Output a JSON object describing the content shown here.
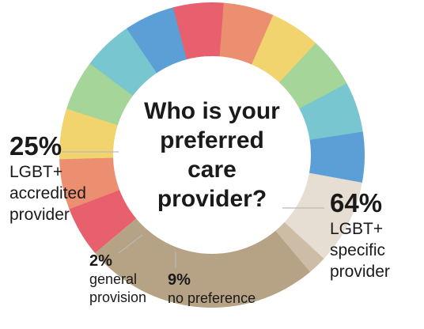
{
  "chart_data": {
    "type": "pie",
    "title": "Who is your preferred care provider?",
    "title_lines": [
      "Who is your",
      "preferred",
      "care",
      "provider?"
    ],
    "slices": [
      {
        "pct_label": "64%",
        "value": 64,
        "label_lines": [
          "LGBT+",
          "specific",
          "provider"
        ],
        "style": "rainbow"
      },
      {
        "pct_label": "9%",
        "value": 9,
        "label_lines": [
          "no preference"
        ],
        "color": "#e6ddd3"
      },
      {
        "pct_label": "2%",
        "value": 2,
        "label_lines": [
          "general",
          "provision"
        ],
        "color": "#cdbda7"
      },
      {
        "pct_label": "25%",
        "value": 25,
        "label_lines": [
          "LGBT+",
          "accredited",
          "provider"
        ],
        "color": "#b6a284"
      }
    ],
    "legend": "none"
  },
  "colors": {
    "rainbow": [
      "#e85f6e",
      "#eb8f70",
      "#f2d46e",
      "#a6d59a",
      "#78c6d0",
      "#5c9fd7"
    ],
    "text": "#1a1a1a",
    "background": "#ffffff"
  }
}
